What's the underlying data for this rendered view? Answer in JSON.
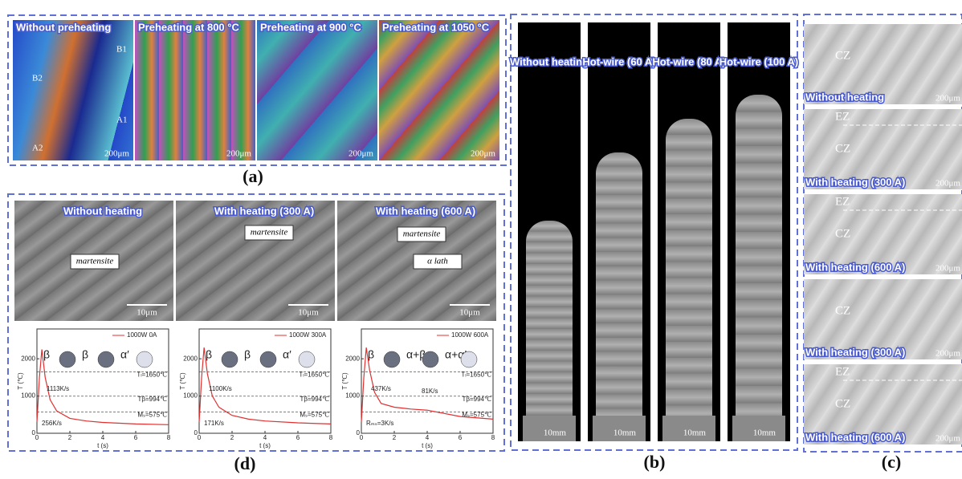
{
  "panel_a": {
    "label": "(a)",
    "images": [
      {
        "title": "Without preheating",
        "scale": "200μm"
      },
      {
        "title": "Preheating at 800 °C",
        "scale": "200μm"
      },
      {
        "title": "Preheating at 900 °C",
        "scale": "200μm"
      },
      {
        "title": "Preheating at 1050 °C",
        "scale": "200μm"
      }
    ],
    "markers": [
      "B1",
      "B2",
      "A1",
      "A2"
    ]
  },
  "panel_b": {
    "label": "(b)",
    "images": [
      {
        "title": "Without heating",
        "scale": "10mm"
      },
      {
        "title": "Hot-wire (60 A)",
        "scale": "10mm"
      },
      {
        "title": "Hot-wire (80 A)",
        "scale": "10mm"
      },
      {
        "title": "Hot-wire (100 A)",
        "scale": "10mm"
      }
    ]
  },
  "panel_c": {
    "label": "(c)",
    "images": [
      {
        "zones": [
          "CZ"
        ],
        "title": "Without heating",
        "scale": "200μm"
      },
      {
        "zones": [
          "EZ",
          "CZ"
        ],
        "title": "With heating (300 A)",
        "scale": "200μm"
      },
      {
        "zones": [
          "EZ",
          "CZ"
        ],
        "title": "With heating (600 A)",
        "scale": "200μm"
      },
      {
        "zones": [
          "CZ"
        ],
        "title": "With heating (300 A)",
        "scale": "200μm"
      },
      {
        "zones": [
          "EZ",
          "CZ"
        ],
        "title": "With heating (600 A)",
        "scale": "200μm"
      }
    ]
  },
  "panel_d": {
    "label": "(d)",
    "images": [
      {
        "title": "Without heating",
        "notes": [
          "martensite"
        ],
        "scale": "10μm"
      },
      {
        "title": "With heating (300 A)",
        "notes": [
          "martensite"
        ],
        "scale": "10μm"
      },
      {
        "title": "With heating (600 A)",
        "notes": [
          "martensite",
          "α lath"
        ],
        "scale": "10μm"
      }
    ],
    "plots": [
      {
        "type": "line",
        "legend": "1000W 0A",
        "color": "#e03030",
        "ylabel": "T (℃)",
        "xlabel": "t (s)",
        "xlim": [
          0,
          8
        ],
        "xticks": [
          0,
          2,
          4,
          6,
          8
        ],
        "ylim": [
          0,
          2800
        ],
        "yticks": [
          0,
          1000,
          2000
        ],
        "x": [
          0,
          0.15,
          0.3,
          0.5,
          0.8,
          1.2,
          2,
          3,
          4,
          6,
          8
        ],
        "values": [
          300,
          1500,
          2250,
          1500,
          900,
          600,
          400,
          330,
          290,
          250,
          230
        ],
        "ref_lines": [
          {
            "value": 1650,
            "label": "Tₗ=1650℃"
          },
          {
            "value": 994,
            "label": "Tβ=994℃"
          },
          {
            "value": 575,
            "label": "Mₛ=575℃"
          }
        ],
        "rates": [
          "1113K/s",
          "256K/s"
        ],
        "phases": [
          "β",
          "β",
          "α′"
        ]
      },
      {
        "type": "line",
        "legend": "1000W 300A",
        "color": "#e03030",
        "ylabel": "T (℃)",
        "xlabel": "t (s)",
        "xlim": [
          0,
          8
        ],
        "xticks": [
          0,
          2,
          4,
          6,
          8
        ],
        "ylim": [
          0,
          2800
        ],
        "yticks": [
          0,
          1000,
          2000
        ],
        "x": [
          0,
          0.15,
          0.3,
          0.5,
          0.8,
          1.2,
          2,
          3,
          4,
          6,
          8
        ],
        "values": [
          300,
          1500,
          2300,
          1600,
          1000,
          700,
          480,
          380,
          330,
          280,
          250
        ],
        "ref_lines": [
          {
            "value": 1650,
            "label": "Tₗ=1650℃"
          },
          {
            "value": 994,
            "label": "Tβ=994℃"
          },
          {
            "value": 575,
            "label": "Mₛ=575℃"
          }
        ],
        "rates": [
          "1100K/s",
          "171K/s"
        ],
        "phases": [
          "β",
          "β",
          "α′"
        ]
      },
      {
        "type": "line",
        "legend": "1000W 600A",
        "color": "#e03030",
        "ylabel": "T (℃)",
        "xlabel": "t (s)",
        "xlim": [
          0,
          8
        ],
        "xticks": [
          0,
          2,
          4,
          6,
          8
        ],
        "ylim": [
          0,
          2800
        ],
        "yticks": [
          0,
          1000,
          2000
        ],
        "x": [
          0,
          0.15,
          0.3,
          0.5,
          0.8,
          1.2,
          2,
          3,
          4,
          6,
          8
        ],
        "values": [
          300,
          1500,
          2300,
          1700,
          1100,
          800,
          700,
          650,
          620,
          450,
          380
        ],
        "ref_lines": [
          {
            "value": 1650,
            "label": "Tₗ=1650℃"
          },
          {
            "value": 994,
            "label": "Tβ=994℃"
          },
          {
            "value": 575,
            "label": "Mₛ=575℃"
          }
        ],
        "rates": [
          "437K/s",
          "Rₘₛ=3K/s",
          "81K/s"
        ],
        "phases": [
          "β",
          "α+β",
          "α+α′"
        ]
      }
    ]
  }
}
